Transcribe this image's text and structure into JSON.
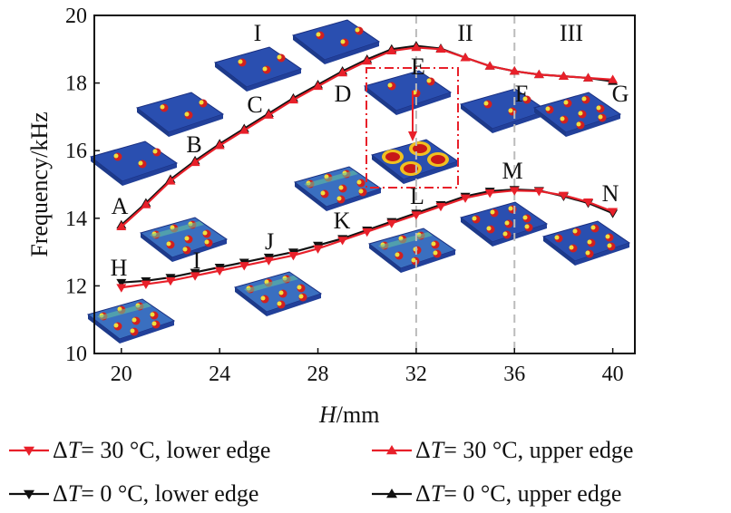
{
  "chart_data": {
    "type": "line",
    "title": "",
    "xlabel_italic": "H",
    "xlabel_unit": "/mm",
    "ylabel": "Frequency/kHz",
    "xlim": [
      18.9,
      40.9
    ],
    "ylim": [
      10,
      20
    ],
    "xticks": [
      20,
      24,
      28,
      32,
      36,
      40
    ],
    "yticks": [
      10,
      12,
      14,
      16,
      18,
      20
    ],
    "grid": false,
    "x": [
      20,
      21,
      22,
      23,
      24,
      25,
      26,
      27,
      28,
      29,
      30,
      31,
      32,
      33,
      34,
      35,
      36,
      37,
      38,
      39,
      40
    ],
    "series": [
      {
        "name": "ΔT=30 °C, lower edge",
        "color": "#e8202a",
        "marker": "triangle-down",
        "values": [
          11.95,
          12.05,
          12.15,
          12.3,
          12.45,
          12.6,
          12.75,
          12.9,
          13.1,
          13.35,
          13.6,
          13.85,
          14.1,
          14.35,
          14.6,
          14.75,
          14.82,
          14.8,
          14.68,
          14.48,
          14.2
        ]
      },
      {
        "name": "ΔT=30 °C, upper edge",
        "color": "#e8202a",
        "marker": "triangle-up",
        "values": [
          13.75,
          14.4,
          15.1,
          15.65,
          16.15,
          16.6,
          17.05,
          17.5,
          17.9,
          18.3,
          18.65,
          18.95,
          19.05,
          19.0,
          18.75,
          18.5,
          18.35,
          18.25,
          18.2,
          18.15,
          18.1
        ]
      },
      {
        "name": "ΔT=0 °C, lower edge",
        "color": "#111111",
        "marker": "triangle-down",
        "values": [
          12.1,
          12.15,
          12.25,
          12.4,
          12.55,
          12.7,
          12.85,
          13.0,
          13.2,
          13.4,
          13.65,
          13.9,
          14.15,
          14.4,
          14.65,
          14.8,
          14.85,
          14.82,
          14.65,
          14.45,
          14.15
        ]
      },
      {
        "name": "ΔT=0 °C, upper edge",
        "color": "#111111",
        "marker": "triangle-up",
        "values": [
          13.8,
          14.45,
          15.15,
          15.7,
          16.2,
          16.65,
          17.1,
          17.55,
          17.95,
          18.35,
          18.7,
          19.0,
          19.1,
          19.02,
          18.75,
          18.5,
          18.35,
          18.25,
          18.2,
          18.15,
          18.05
        ]
      }
    ],
    "vlines": [
      32,
      36
    ],
    "region_labels": [
      "I",
      "II",
      "III"
    ],
    "point_labels": [
      "A",
      "B",
      "C",
      "D",
      "E",
      "F",
      "G",
      "H",
      "I",
      "J",
      "K",
      "L",
      "M",
      "N"
    ],
    "legend": {
      "placement": "bottom",
      "entries": [
        {
          "delta": "Δ",
          "var": "T",
          "text": "= 30 °C, lower edge"
        },
        {
          "delta": "Δ",
          "var": "T",
          "text": "= 30 °C, upper edge"
        },
        {
          "delta": "Δ",
          "var": "T",
          "text": "= 0 °C, lower edge"
        },
        {
          "delta": "Δ",
          "var": "T",
          "text": "= 0 °C, upper edge"
        }
      ]
    }
  }
}
